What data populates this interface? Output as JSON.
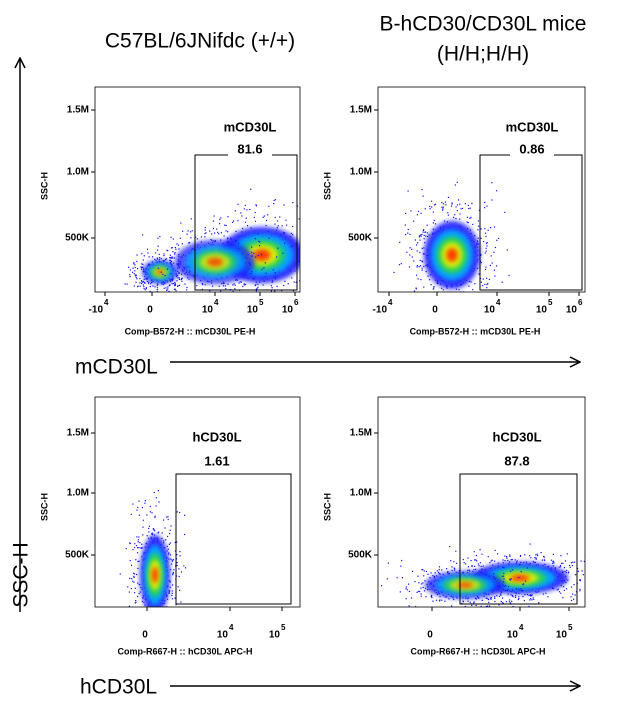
{
  "columns": [
    {
      "lines": [
        "C57BL/6JNifdc (+/+)"
      ]
    },
    {
      "lines": [
        "B-hCD30/CD30L mice",
        "(H/H;H/H)"
      ]
    }
  ],
  "y_axis_label": "SSC-H",
  "row_labels": [
    "mCD30L",
    "hCD30L"
  ],
  "panels": [
    {
      "y_label": "SSC-H",
      "yticks": [
        "1.5M",
        "1.0M",
        "500K"
      ],
      "x_label": "Comp-B572-H :: mCD30L PE-H",
      "xticks": [
        {
          "base": "-10",
          "exp": "4"
        },
        {
          "base": "0"
        },
        {
          "base": "10",
          "exp": "4"
        },
        {
          "base": "10",
          "exp": "5"
        },
        {
          "base": "10",
          "exp": "6"
        }
      ],
      "gate_name": "mCD30L",
      "gate_percent": 81.6
    },
    {
      "y_label": "SSC-H",
      "yticks": [
        "1.5M",
        "1.0M",
        "500K"
      ],
      "x_label": "Comp-B572-H :: mCD30L PE-H",
      "xticks": [
        {
          "base": "-10",
          "exp": "4"
        },
        {
          "base": "0"
        },
        {
          "base": "10",
          "exp": "4"
        },
        {
          "base": "10",
          "exp": "5"
        },
        {
          "base": "10",
          "exp": "6"
        }
      ],
      "gate_name": "mCD30L",
      "gate_percent": 0.86
    },
    {
      "y_label": "SSC-H",
      "yticks": [
        "1.5M",
        "1.0M",
        "500K"
      ],
      "x_label": "Comp-R667-H :: hCD30L APC-H",
      "xticks": [
        {
          "base": "0"
        },
        {
          "base": "10",
          "exp": "4"
        },
        {
          "base": "10",
          "exp": "5"
        }
      ],
      "gate_name": "hCD30L",
      "gate_percent": 1.61
    },
    {
      "y_label": "SSC-H",
      "yticks": [
        "1.5M",
        "1.0M",
        "500K"
      ],
      "x_label": "Comp-R667-H :: hCD30L APC-H",
      "xticks": [
        {
          "base": "0"
        },
        {
          "base": "10",
          "exp": "4"
        },
        {
          "base": "10",
          "exp": "5"
        }
      ],
      "gate_name": "hCD30L",
      "gate_percent": 87.8
    }
  ]
}
